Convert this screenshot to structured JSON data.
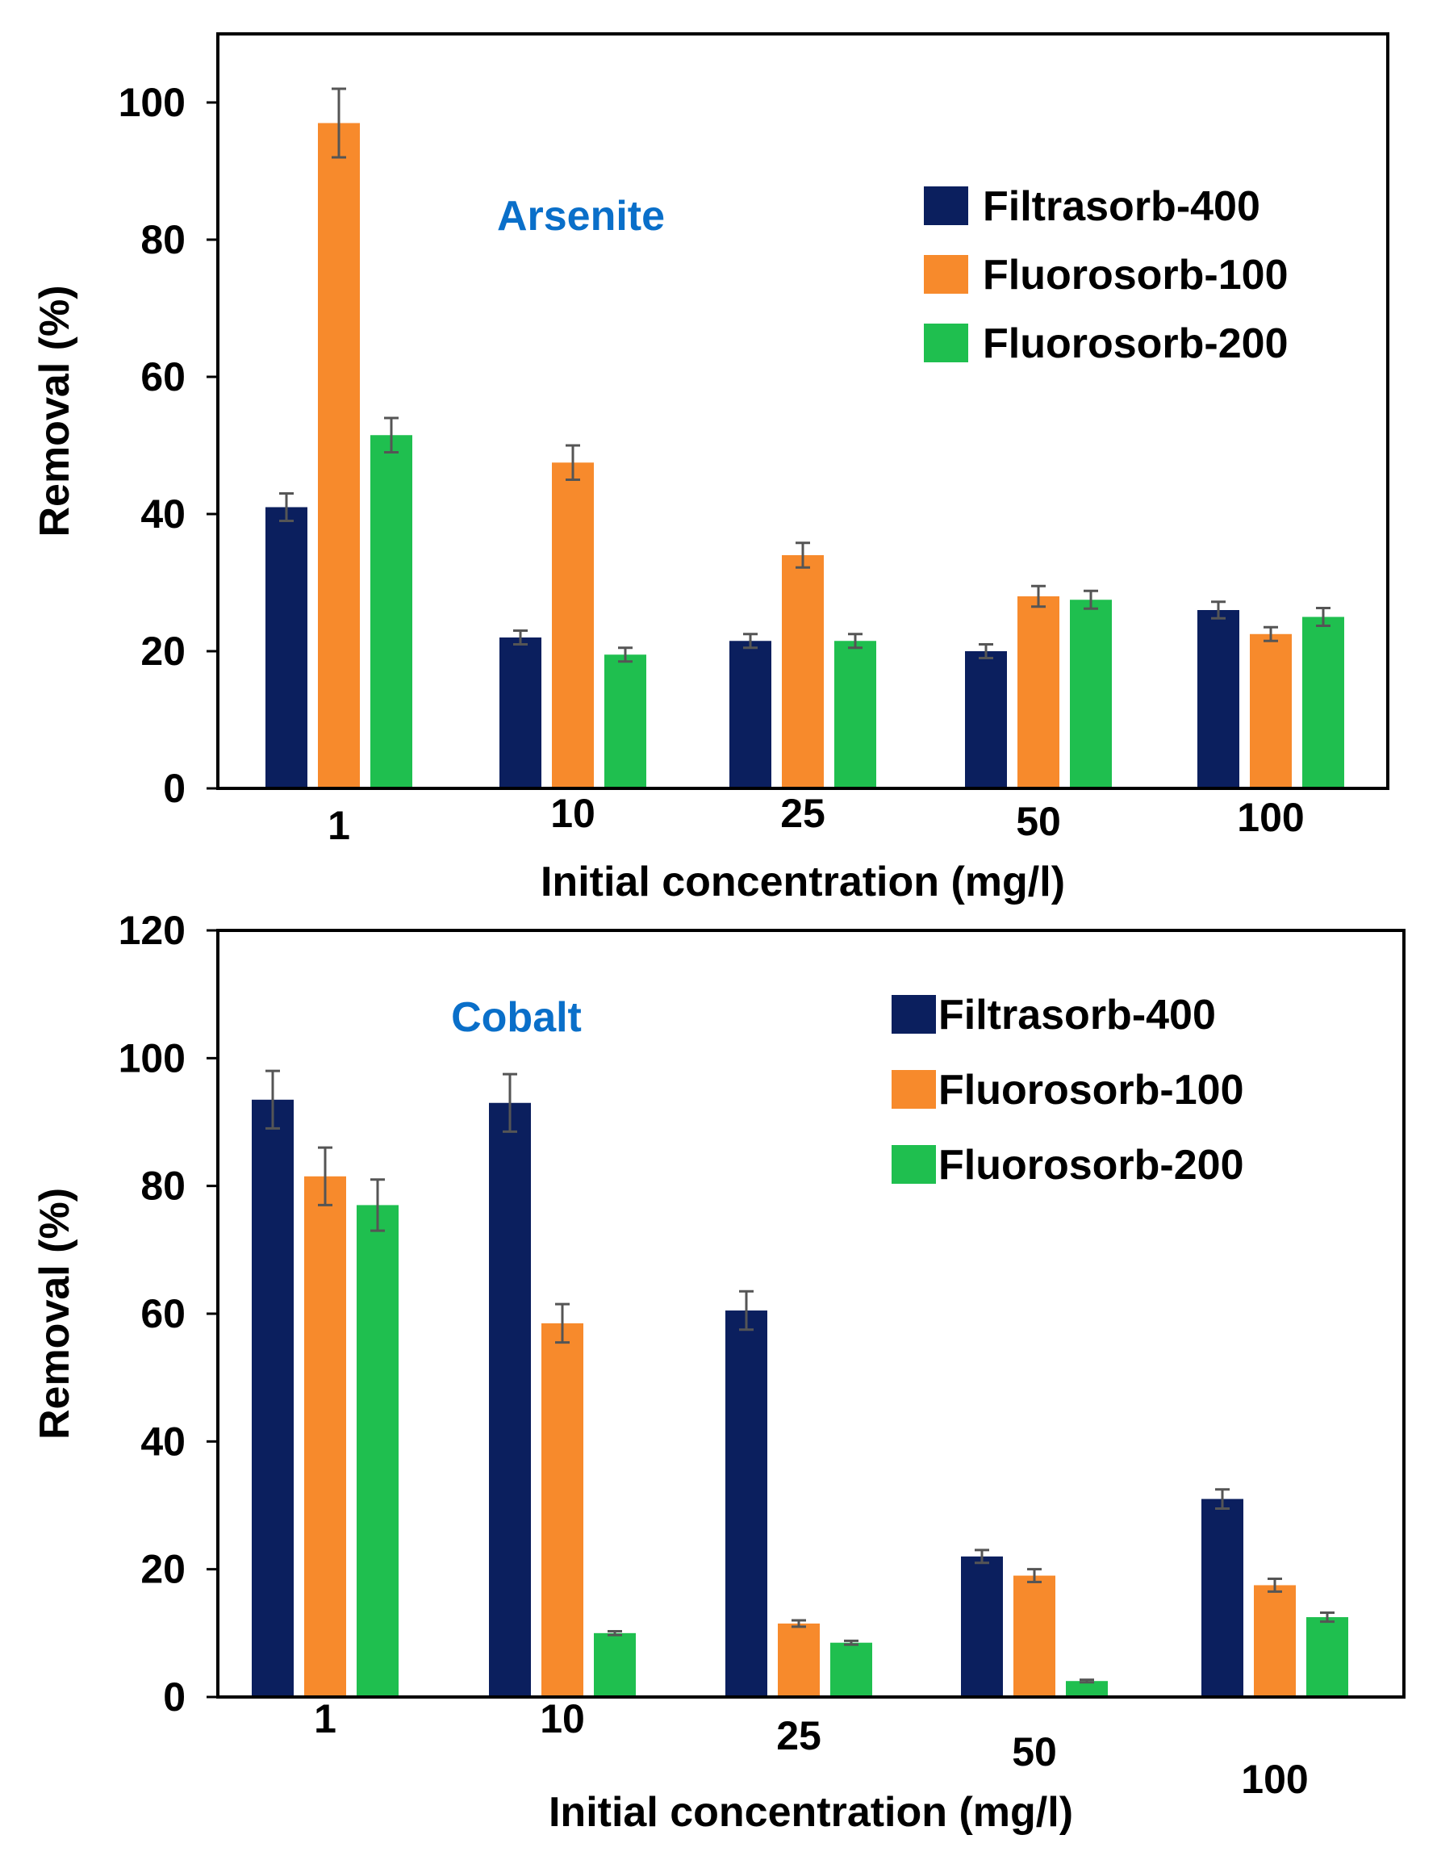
{
  "chart_data": [
    {
      "type": "bar",
      "annotation": "Arsenite",
      "title": "",
      "xlabel": "Initial concentration (mg/l)",
      "ylabel": "Removal (%)",
      "categories": [
        "1",
        "10",
        "25",
        "50",
        "100"
      ],
      "ylim": [
        0,
        110
      ],
      "yticks": [
        "0",
        "20",
        "40",
        "60",
        "80",
        "100"
      ],
      "grid": false,
      "legend_position": "top-right",
      "series": [
        {
          "name": "Filtrasorb-400",
          "color": "#0b1f5e",
          "values": [
            41,
            22,
            21.5,
            20,
            26
          ],
          "errors": [
            2,
            1,
            1,
            1,
            1.2
          ]
        },
        {
          "name": "Fluorosorb-100",
          "color": "#f78a2c",
          "values": [
            97,
            47.5,
            34,
            28,
            22.5
          ],
          "errors": [
            5,
            2.5,
            1.8,
            1.5,
            1
          ]
        },
        {
          "name": "Fluorosorb-200",
          "color": "#1fbf4f",
          "values": [
            51.5,
            19.5,
            21.5,
            27.5,
            25
          ],
          "errors": [
            2.5,
            1,
            1,
            1.3,
            1.3
          ]
        }
      ]
    },
    {
      "type": "bar",
      "annotation": "Cobalt",
      "title": "",
      "xlabel": "Initial concentration (mg/l)",
      "ylabel": "Removal (%)",
      "categories": [
        "1",
        "10",
        "25",
        "50",
        "100"
      ],
      "ylim": [
        0,
        120
      ],
      "yticks": [
        "0",
        "20",
        "40",
        "60",
        "80",
        "100",
        "120"
      ],
      "grid": false,
      "legend_position": "top-right",
      "series": [
        {
          "name": "Filtrasorb-400",
          "color": "#0b1f5e",
          "values": [
            93.5,
            93,
            60.5,
            22,
            31
          ],
          "errors": [
            4.5,
            4.5,
            3,
            1,
            1.5
          ]
        },
        {
          "name": "Fluorosorb-100",
          "color": "#f78a2c",
          "values": [
            81.5,
            58.5,
            11.5,
            19,
            17.5
          ],
          "errors": [
            4.5,
            3,
            0.5,
            1,
            1
          ]
        },
        {
          "name": "Fluorosorb-200",
          "color": "#1fbf4f",
          "values": [
            77,
            10,
            8.5,
            2.5,
            12.5
          ],
          "errors": [
            4,
            0.3,
            0.3,
            0.2,
            0.7
          ]
        }
      ]
    }
  ],
  "colors": {
    "annotation": "#0a6fc9",
    "errorbar": "#555555"
  }
}
